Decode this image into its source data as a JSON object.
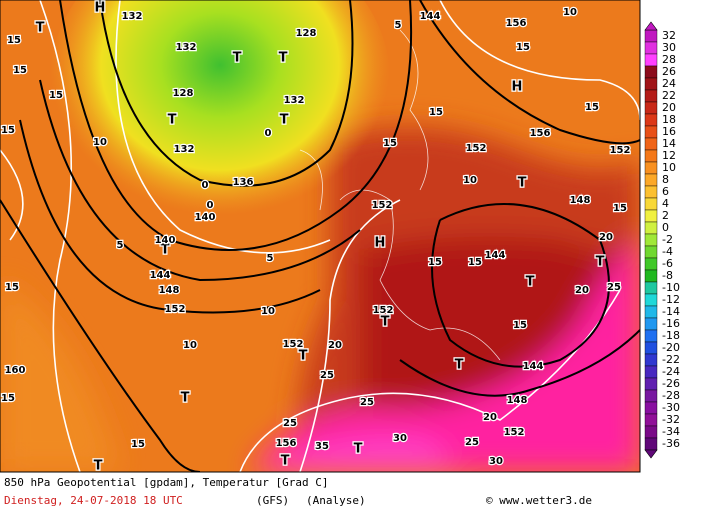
{
  "map": {
    "labels": [
      "H",
      "T",
      "T",
      "T",
      "T",
      "T",
      "T",
      "T",
      "H",
      "T",
      "T",
      "T",
      "T",
      "T",
      "H",
      "T",
      "T",
      "T",
      "T",
      "132",
      "132",
      "132",
      "132",
      "128",
      "128",
      "136",
      "156",
      "156",
      "140",
      "140",
      "144",
      "144",
      "144",
      "144",
      "148",
      "148",
      "148",
      "152",
      "152",
      "152",
      "152",
      "152",
      "152",
      "152",
      "160",
      "156",
      "15",
      "15",
      "15",
      "15",
      "15",
      "15",
      "15",
      "15",
      "15",
      "15",
      "15",
      "15",
      "15",
      "15",
      "15",
      "10",
      "10",
      "10",
      "10",
      "10",
      "5",
      "5",
      "5",
      "0",
      "0",
      "0",
      "20",
      "20",
      "20",
      "20",
      "25",
      "25",
      "25",
      "25",
      "25",
      "30",
      "30",
      "35"
    ]
  },
  "colorbar": {
    "ticks": [
      32,
      30,
      28,
      26,
      24,
      22,
      20,
      18,
      16,
      14,
      12,
      10,
      8,
      6,
      4,
      2,
      0,
      -2,
      -4,
      -6,
      -8,
      -10,
      -12,
      -14,
      -16,
      -18,
      -20,
      -22,
      -24,
      -26,
      -28,
      -30,
      -32,
      -34,
      -36
    ]
  },
  "footer": {
    "title": "850 hPa Geopotential [gpdam], Temperatur [Grad C]",
    "date": "Dienstag, 24-07-2018  18 UTC",
    "model": "(GFS)",
    "run": "(Analyse)",
    "credit": "© www.wetter3.de"
  }
}
